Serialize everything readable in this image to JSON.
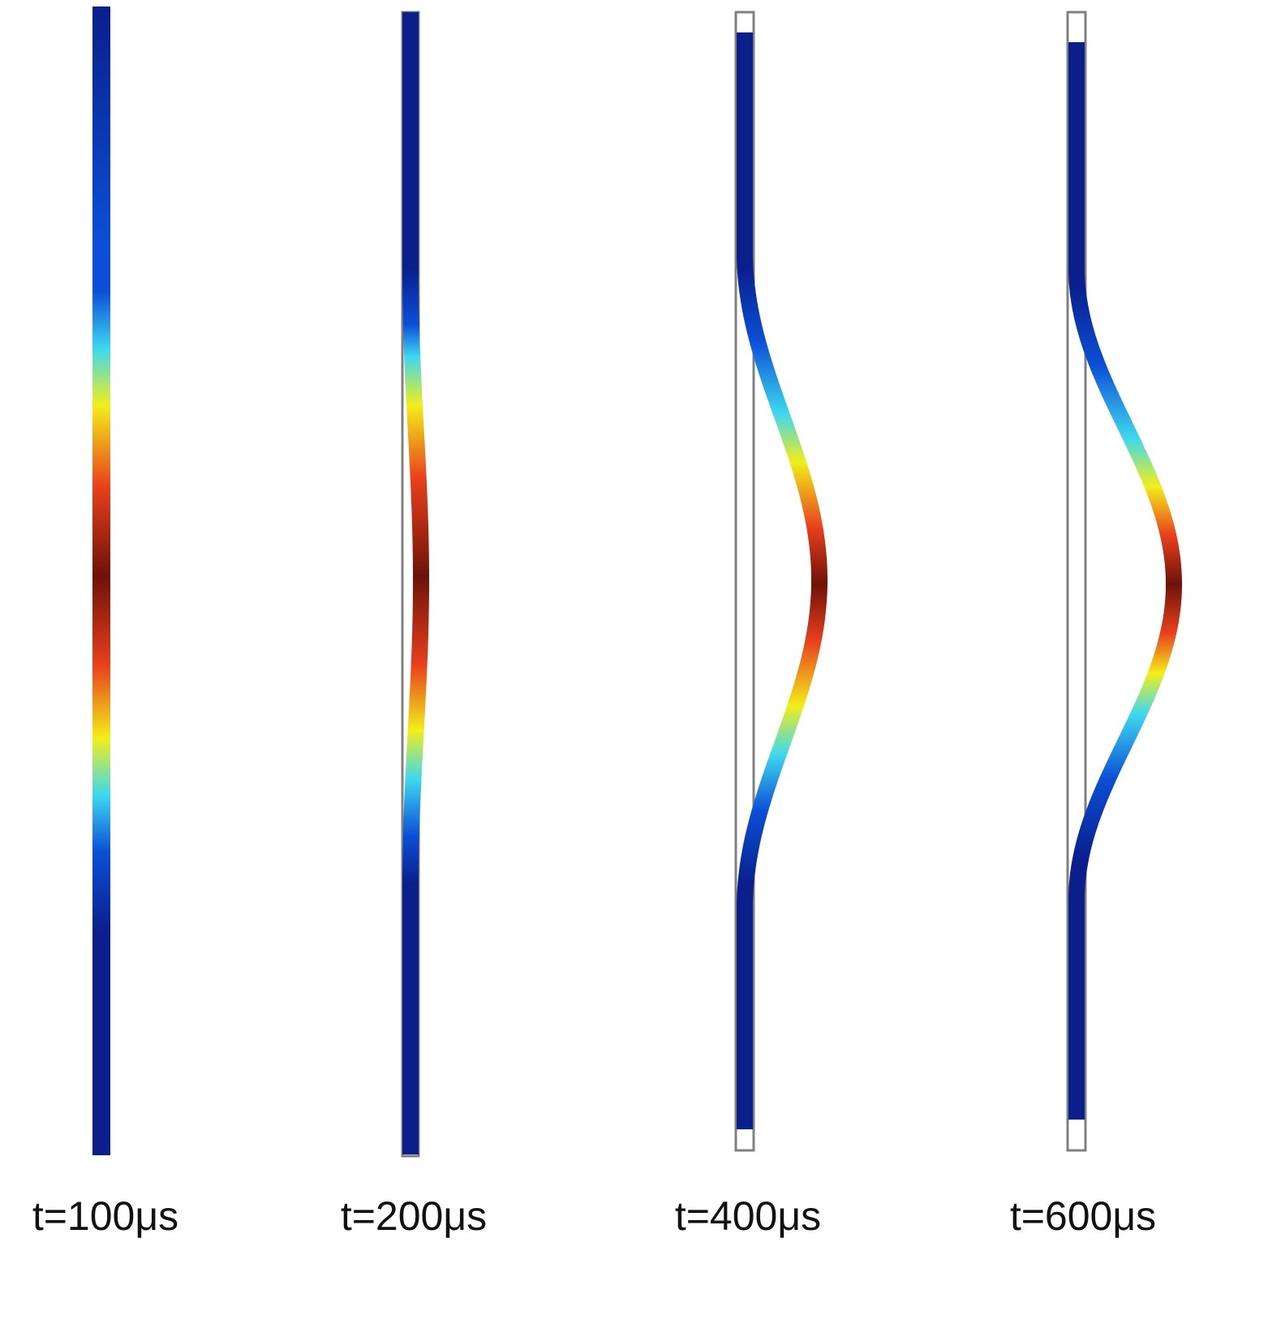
{
  "panels": [
    {
      "label": "t=100μs"
    },
    {
      "label": "t=200μs"
    },
    {
      "label": "t=400μs"
    },
    {
      "label": "t=600μs"
    }
  ],
  "colors": {
    "colormap": [
      "#0a1e8c",
      "#0b4fd6",
      "#3fd8f0",
      "#f2ee1a",
      "#e8401c",
      "#6e1208"
    ],
    "outline": "#808080",
    "background": "#ffffff"
  }
}
